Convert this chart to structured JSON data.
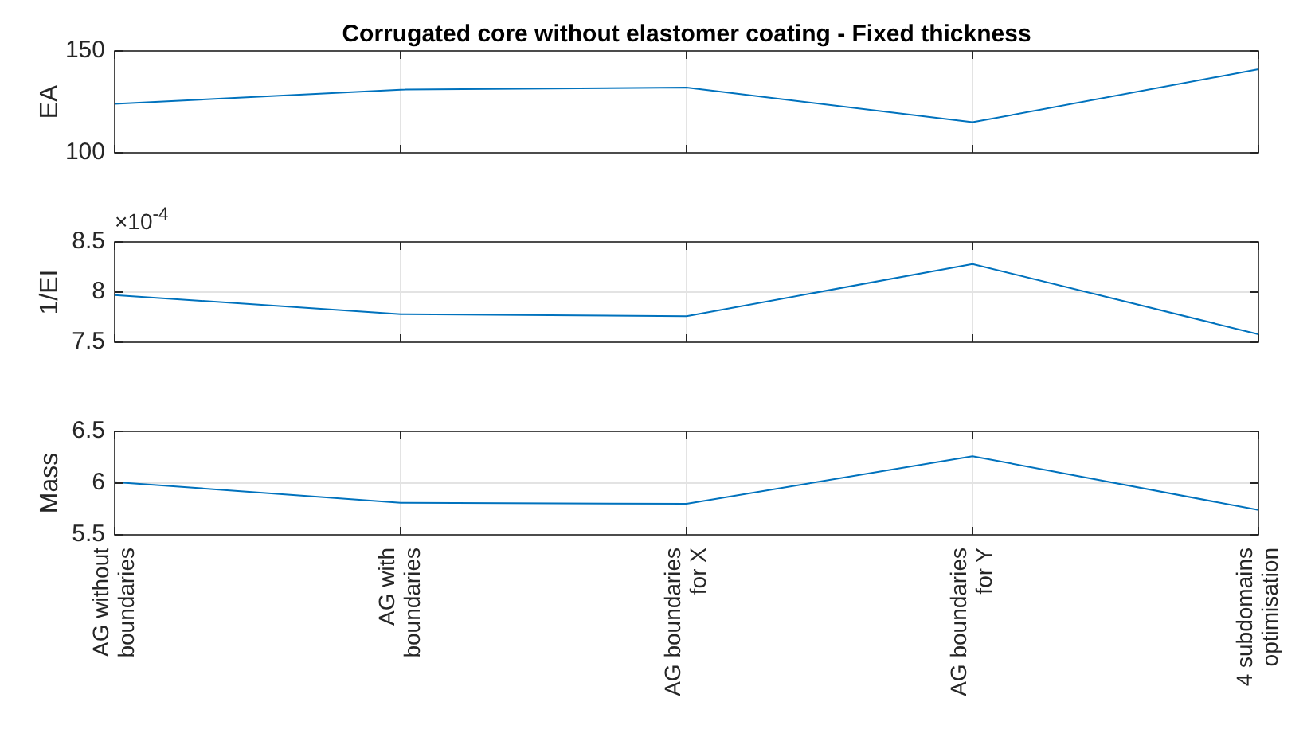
{
  "chart_data": [
    {
      "type": "line",
      "title": "Corrugated core without elastomer coating - Fixed thickness",
      "ylabel": "EA",
      "categories": [
        null,
        null,
        null,
        null,
        null
      ],
      "series": [
        {
          "color": "#0072bd",
          "values": [
            124,
            131,
            132,
            115,
            141
          ]
        }
      ],
      "ylim": [
        100,
        150
      ],
      "yticks": [
        100,
        150
      ],
      "grid": true,
      "tick_labels": "y"
    },
    {
      "type": "line",
      "ylabel": "1/EI",
      "annotations": [
        "×10$^{-4}$"
      ],
      "categories": [
        null,
        null,
        null,
        null,
        null
      ],
      "series": [
        {
          "color": "#0072bd",
          "values": [
            7.97,
            7.78,
            7.76,
            8.28,
            7.58
          ]
        }
      ],
      "ylim": [
        7.5,
        8.5
      ],
      "yticks": [
        7.5,
        8,
        8.5
      ],
      "grid": true,
      "tick_labels": "y"
    },
    {
      "type": "line",
      "ylabel": "Mass",
      "categories": [
        "AG without boundaries",
        "AG with boundaries",
        "AG boundaries for X",
        "AG boundaries for Y",
        "4 subdomains optimisation"
      ],
      "series": [
        {
          "color": "#0072bd",
          "values": [
            6.01,
            5.81,
            5.8,
            6.26,
            5.74
          ]
        }
      ],
      "ylim": [
        5.5,
        6.5
      ],
      "yticks": [
        5.5,
        6,
        6.5
      ],
      "grid": true
    }
  ]
}
